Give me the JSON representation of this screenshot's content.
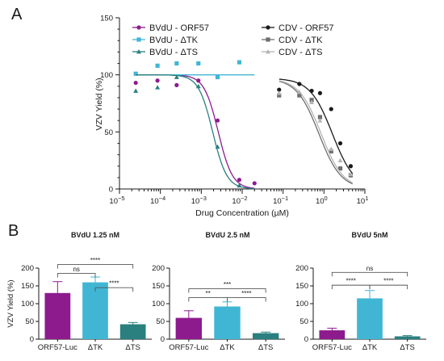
{
  "panels": {
    "a": "A",
    "b": "B"
  },
  "chart_data": [
    {
      "type": "scatter",
      "xlabel": "Drug Concentration (µM)",
      "ylabel": "VZV Yield (%)",
      "xscale": "log",
      "xlim": [
        1e-05,
        10
      ],
      "ylim": [
        0,
        150
      ],
      "yticks": [
        0,
        50,
        100,
        150
      ],
      "xticks": [
        {
          "value": 1e-05,
          "label_base": "10",
          "label_exp": "−5"
        },
        {
          "value": 0.0001,
          "label_base": "10",
          "label_exp": "−4"
        },
        {
          "value": 0.001,
          "label_base": "10",
          "label_exp": "−3"
        },
        {
          "value": 0.01,
          "label_base": "10",
          "label_exp": "−2"
        },
        {
          "value": 0.1,
          "label_base": "10",
          "label_exp": "−1"
        },
        {
          "value": 1,
          "label_base": "10",
          "label_exp": "0"
        },
        {
          "value": 10,
          "label_base": "10",
          "label_exp": "1"
        }
      ],
      "legend": "top, two columns",
      "series": [
        {
          "name": "BVdU - ORF57",
          "color": "#8e1b8e",
          "marker": "circle",
          "x": [
            2.5e-05,
            8.5e-05,
            0.00025,
            0.00085,
            0.0025,
            0.0085,
            0.02
          ],
          "y": [
            93,
            95,
            91,
            95,
            60,
            8,
            5
          ],
          "curve": {
            "top": 100,
            "bottom": 0,
            "ec50": 0.0026,
            "hill": 2.5,
            "x_from": 2.5e-05,
            "x_to": 0.02
          }
        },
        {
          "name": "BVdU - ΔTK",
          "color": "#41b6d4",
          "marker": "square",
          "x": [
            2.5e-05,
            8.5e-05,
            0.00025,
            0.00085,
            0.0025,
            0.0085
          ],
          "y": [
            101,
            108,
            110,
            110,
            98,
            111
          ],
          "curve": {
            "top": 100,
            "bottom": 100,
            "ec50": 1,
            "hill": 1,
            "x_from": 2.5e-05,
            "x_to": 0.02
          }
        },
        {
          "name": "BVdU - ΔTS",
          "color": "#2a7f7f",
          "marker": "triangle",
          "x": [
            2.5e-05,
            8.5e-05,
            0.00025,
            0.00085,
            0.0025,
            0.0085
          ],
          "y": [
            86,
            89,
            98,
            90,
            37,
            3
          ],
          "curve": {
            "top": 100,
            "bottom": 0,
            "ec50": 0.0019,
            "hill": 2.5,
            "x_from": 2.5e-05,
            "x_to": 0.02
          }
        },
        {
          "name": "CDV - ORF57",
          "color": "#1a1a1a",
          "marker": "circle",
          "x": [
            0.08,
            0.25,
            0.5,
            0.8,
            1.5,
            2.5,
            4.5
          ],
          "y": [
            87,
            92,
            86,
            84,
            70,
            40,
            20
          ],
          "curve": {
            "top": 97,
            "bottom": 0,
            "ec50": 1.6,
            "hill": 1.6,
            "x_from": 0.08,
            "x_to": 5
          }
        },
        {
          "name": "CDV - ΔTK",
          "color": "#6e6e6e",
          "marker": "square",
          "x": [
            0.08,
            0.25,
            0.5,
            0.8,
            1.5,
            2.5,
            4.5
          ],
          "y": [
            82,
            82,
            78,
            63,
            33,
            18,
            12
          ],
          "curve": {
            "top": 97,
            "bottom": 0,
            "ec50": 0.75,
            "hill": 1.6,
            "x_from": 0.08,
            "x_to": 5
          }
        },
        {
          "name": "CDV - ΔTS",
          "color": "#b5b5b5",
          "marker": "triangle",
          "x": [
            0.08,
            0.25,
            0.5,
            0.8,
            1.5,
            2.5,
            4.5
          ],
          "y": [
            84,
            85,
            76,
            60,
            35,
            25,
            13
          ],
          "curve": {
            "top": 97,
            "bottom": 0,
            "ec50": 0.85,
            "hill": 1.6,
            "x_from": 0.08,
            "x_to": 5
          }
        }
      ]
    },
    {
      "type": "bar",
      "title": "BVdU 1.25 nM",
      "ylabel": "VZV Yield (%)",
      "categories": [
        "ORF57-Luc",
        "ΔTK",
        "ΔTS"
      ],
      "values": [
        130,
        160,
        42
      ],
      "errors": [
        32,
        15,
        5
      ],
      "colors": [
        "#8e1b8e",
        "#41b6d4",
        "#2a7f7f"
      ],
      "ylim": [
        0,
        200
      ],
      "yticks": [
        0,
        50,
        100,
        150,
        200
      ],
      "comparisons": [
        {
          "from": 1,
          "to": 2,
          "level": 145,
          "label": "****"
        },
        {
          "from": 0,
          "to": 1,
          "level": 185,
          "label": "ns"
        },
        {
          "from": 0,
          "to": 2,
          "level": 210,
          "label": "****"
        }
      ]
    },
    {
      "type": "bar",
      "title": "BVdU 2.5 nM",
      "categories": [
        "ORF57-Luc",
        "ΔTK",
        "ΔTS"
      ],
      "values": [
        60,
        92,
        17
      ],
      "errors": [
        20,
        13,
        3
      ],
      "colors": [
        "#8e1b8e",
        "#41b6d4",
        "#2a7f7f"
      ],
      "ylim": [
        0,
        200
      ],
      "yticks": [
        0,
        50,
        100,
        150,
        200
      ],
      "comparisons": [
        {
          "from": 0,
          "to": 1,
          "level": 117,
          "label": "**"
        },
        {
          "from": 1,
          "to": 2,
          "level": 117,
          "label": "****"
        },
        {
          "from": 0,
          "to": 2,
          "level": 142,
          "label": "***"
        }
      ]
    },
    {
      "type": "bar",
      "title": "BVdU 5nM",
      "categories": [
        "ORF57-Luc",
        "ΔTK",
        "ΔTS"
      ],
      "values": [
        25,
        115,
        8
      ],
      "errors": [
        6,
        22,
        2
      ],
      "colors": [
        "#8e1b8e",
        "#41b6d4",
        "#2a7f7f"
      ],
      "ylim": [
        0,
        200
      ],
      "yticks": [
        0,
        50,
        100,
        150,
        200
      ],
      "comparisons": [
        {
          "from": 0,
          "to": 1,
          "level": 152,
          "label": "****"
        },
        {
          "from": 1,
          "to": 2,
          "level": 152,
          "label": "****"
        },
        {
          "from": 0,
          "to": 2,
          "level": 188,
          "label": "ns"
        }
      ]
    }
  ]
}
